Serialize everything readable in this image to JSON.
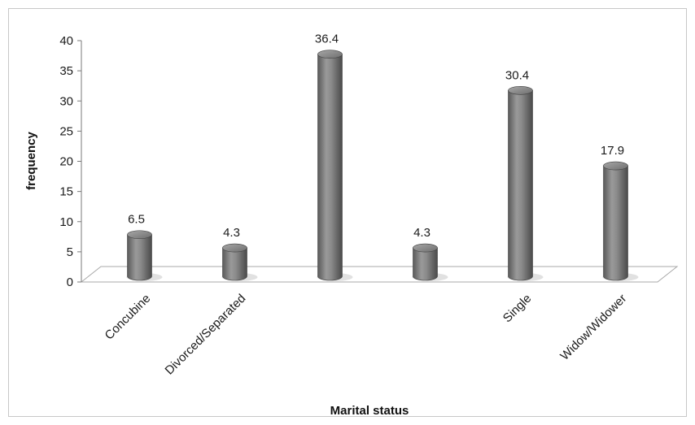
{
  "chart_data": {
    "type": "bar",
    "categories": [
      "Concubine",
      "Divorced/Separated",
      "",
      "",
      "Single",
      "Widow/Widower"
    ],
    "values": [
      6.5,
      4.3,
      36.4,
      4.3,
      30.4,
      17.9
    ],
    "data_labels": [
      "6.5",
      "4.3",
      "36.4",
      "4.3",
      "30.4",
      "17.9"
    ],
    "xlabel": "Marital status",
    "ylabel": "frequency",
    "ylim": [
      0,
      40
    ],
    "yticks": [
      "0",
      "5",
      "10",
      "15",
      "20",
      "25",
      "30",
      "35",
      "40"
    ],
    "grid": false,
    "legend": "none",
    "bar_color": "#7a7a7a",
    "style": "3d-cylinder"
  }
}
